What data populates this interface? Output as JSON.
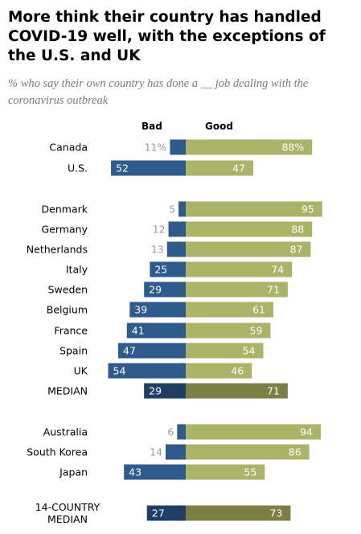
{
  "title": "More think their country has handled COVID-19 well, with the exceptions of the U.S. and UK",
  "subtitle": "% who say their own country has done a __ job dealing with the coronavirus outbreak",
  "colors": {
    "bad": "#2e5a8c",
    "good": "#aab368",
    "bad_median": "#1f3e66",
    "good_median": "#7a7f45",
    "light_text": "#9a9a9a"
  },
  "chart_data": {
    "type": "bar",
    "orientation": "horizontal-diverging",
    "series": [
      {
        "name": "Bad",
        "values": [
          11,
          52,
          5,
          12,
          13,
          25,
          29,
          39,
          41,
          47,
          54,
          29,
          6,
          14,
          43,
          27
        ]
      },
      {
        "name": "Good",
        "values": [
          88,
          47,
          95,
          88,
          87,
          74,
          71,
          61,
          59,
          54,
          46,
          71,
          94,
          86,
          55,
          73
        ]
      }
    ],
    "categories": [
      "Canada",
      "U.S.",
      "Denmark",
      "Germany",
      "Netherlands",
      "Italy",
      "Sweden",
      "Belgium",
      "France",
      "Spain",
      "UK",
      "MEDIAN",
      "Australia",
      "South Korea",
      "Japan",
      "14-COUNTRY MEDIAN"
    ],
    "bad_labels": [
      "11%",
      "52",
      "5",
      "12",
      "13",
      "25",
      "29",
      "39",
      "41",
      "47",
      "54",
      "29",
      "6",
      "14",
      "43",
      "27"
    ],
    "good_labels": [
      "88%",
      "47",
      "95",
      "88",
      "87",
      "74",
      "71",
      "61",
      "59",
      "54",
      "46",
      "71",
      "94",
      "86",
      "55",
      "73"
    ],
    "median_rows": [
      "MEDIAN",
      "14-COUNTRY MEDIAN"
    ],
    "xlim": [
      0,
      100
    ]
  }
}
